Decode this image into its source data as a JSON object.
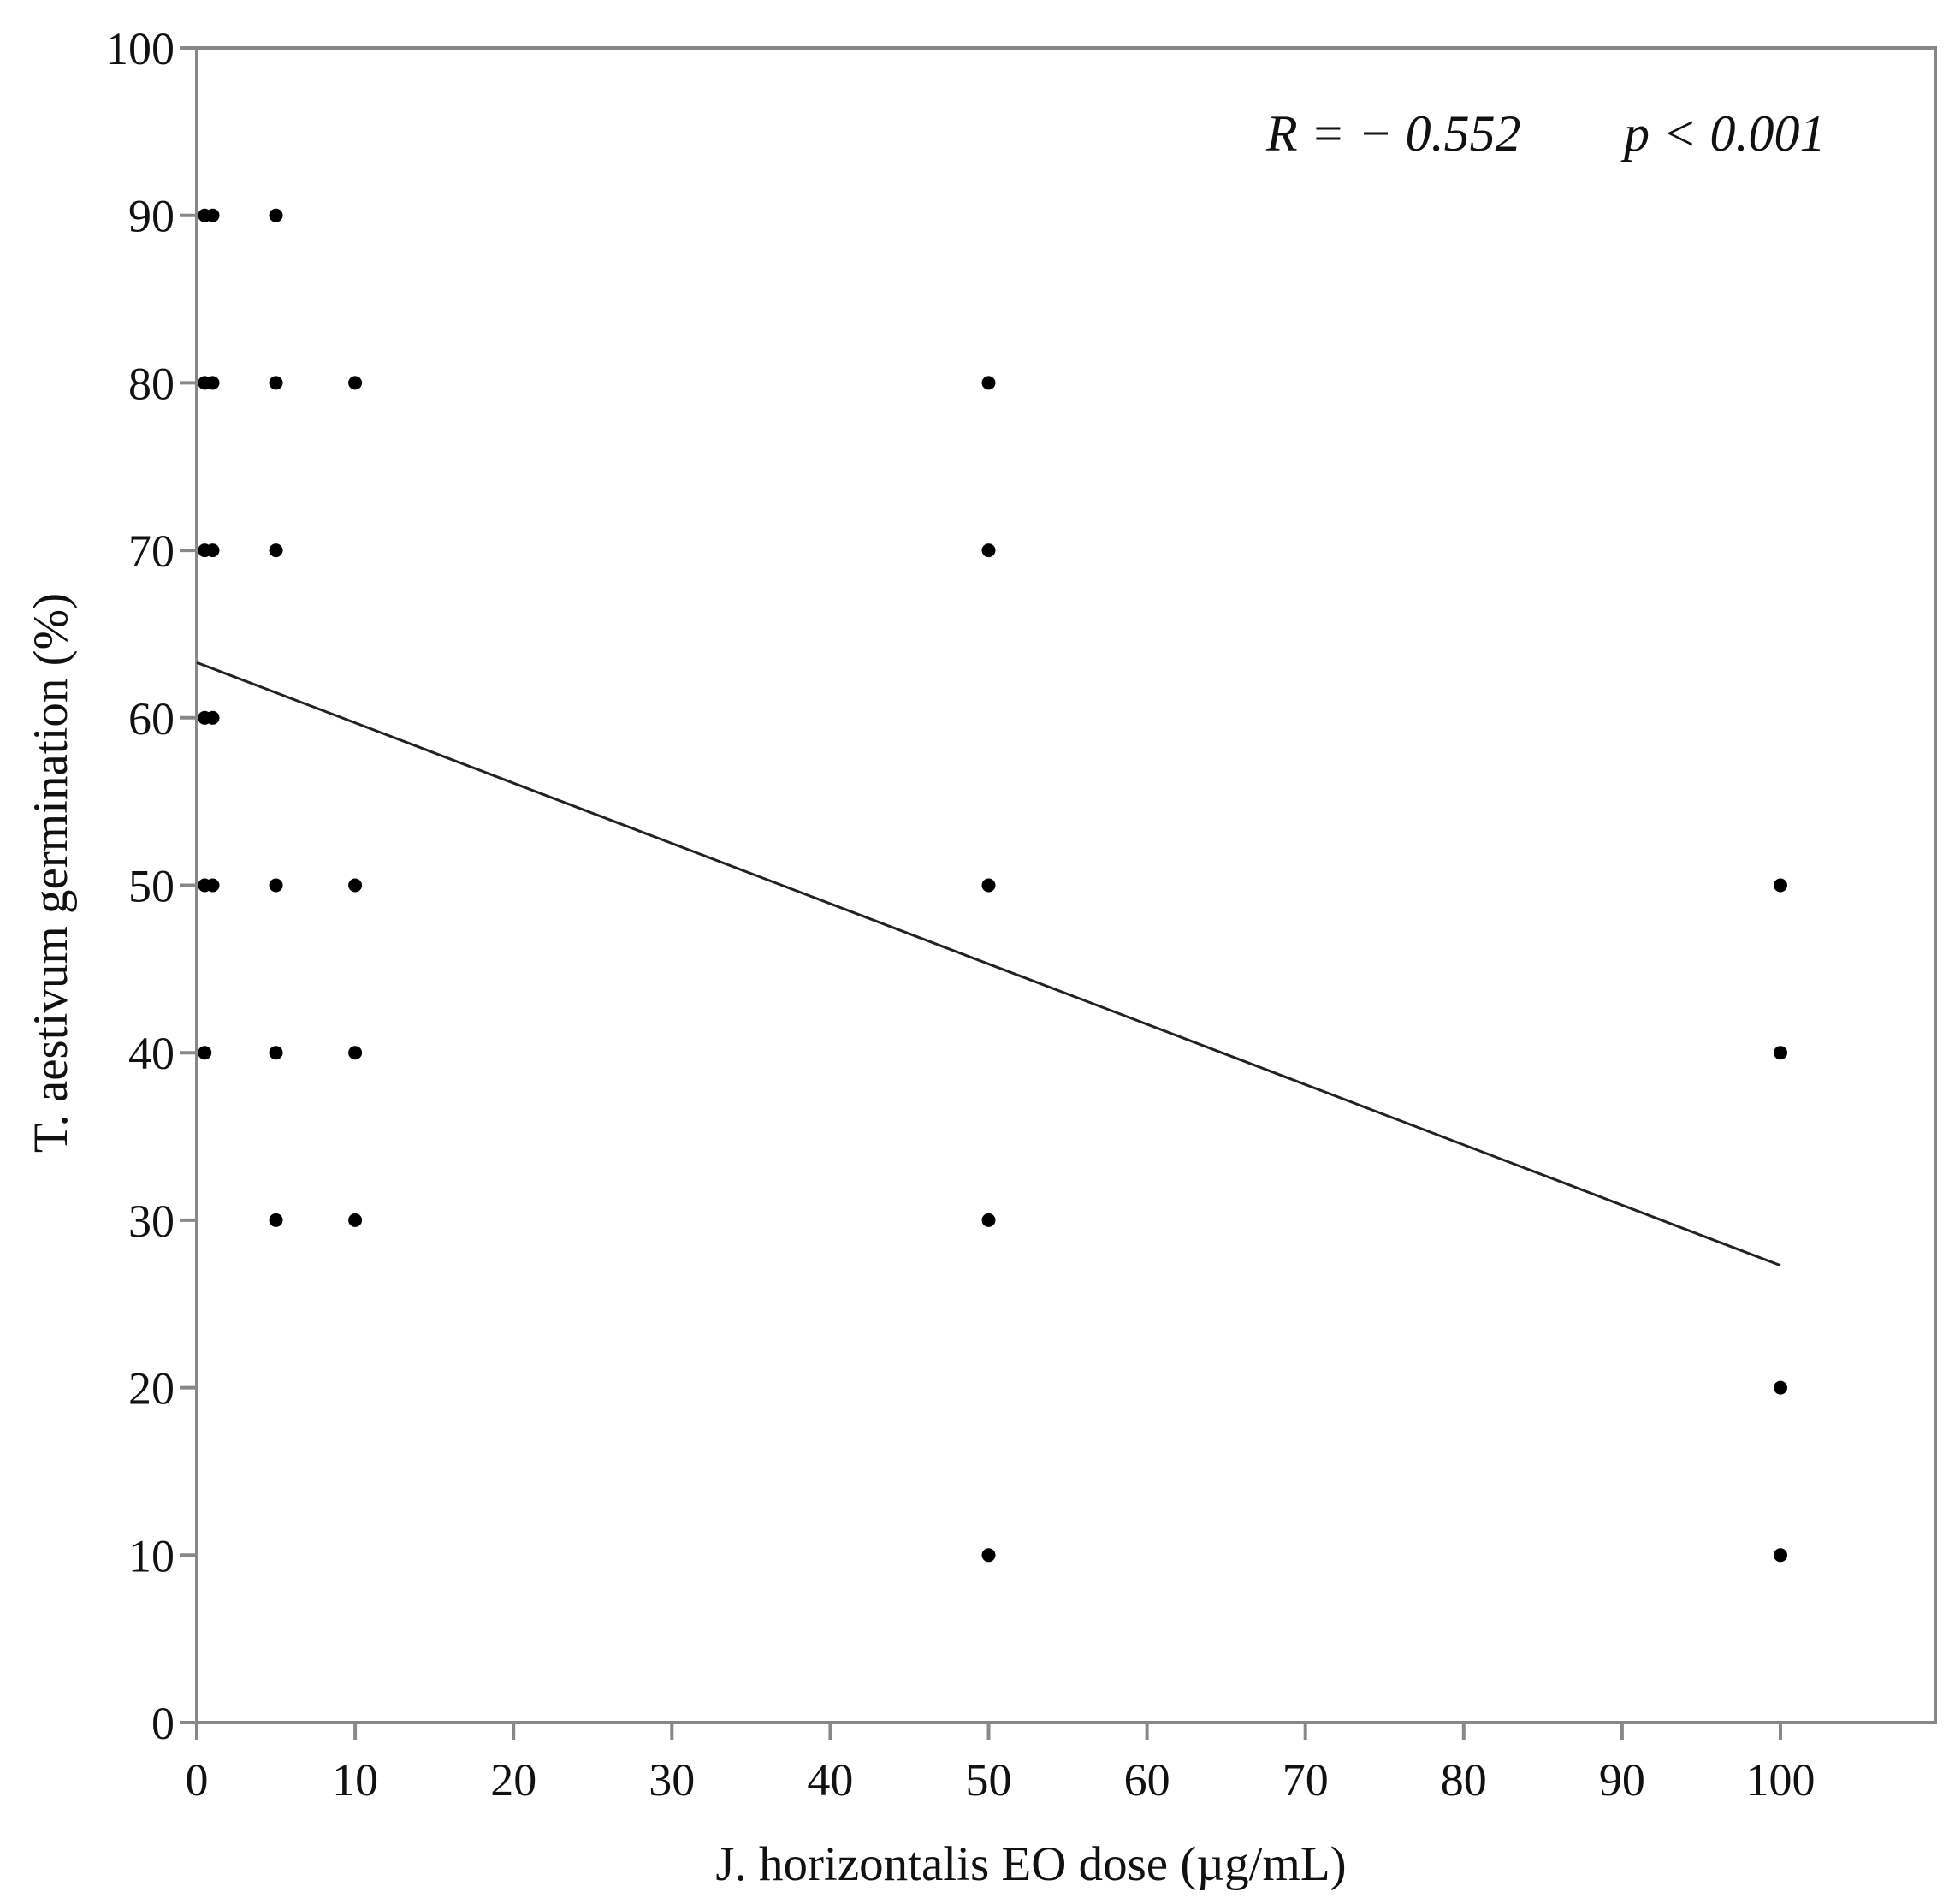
{
  "chart_data": {
    "type": "scatter",
    "xlabel": "J. horizontalis EO dose (µg/mL)",
    "ylabel": "T. aestivum germination (%)",
    "xlim": [
      0,
      110
    ],
    "ylim": [
      0,
      100
    ],
    "x_ticks": [
      0,
      10,
      20,
      30,
      40,
      50,
      60,
      70,
      80,
      90,
      100
    ],
    "y_ticks": [
      0,
      10,
      20,
      30,
      40,
      50,
      60,
      70,
      80,
      90,
      100
    ],
    "grid": false,
    "points": [
      {
        "x": 0.5,
        "y": 90
      },
      {
        "x": 0.5,
        "y": 80
      },
      {
        "x": 0.5,
        "y": 70
      },
      {
        "x": 0.5,
        "y": 60
      },
      {
        "x": 0.5,
        "y": 50
      },
      {
        "x": 0.5,
        "y": 40
      },
      {
        "x": 1,
        "y": 90
      },
      {
        "x": 1,
        "y": 80
      },
      {
        "x": 1,
        "y": 70
      },
      {
        "x": 1,
        "y": 60
      },
      {
        "x": 1,
        "y": 50
      },
      {
        "x": 5,
        "y": 90
      },
      {
        "x": 5,
        "y": 80
      },
      {
        "x": 5,
        "y": 70
      },
      {
        "x": 5,
        "y": 50
      },
      {
        "x": 5,
        "y": 40
      },
      {
        "x": 5,
        "y": 30
      },
      {
        "x": 10,
        "y": 80
      },
      {
        "x": 10,
        "y": 50
      },
      {
        "x": 10,
        "y": 40
      },
      {
        "x": 10,
        "y": 30
      },
      {
        "x": 50,
        "y": 80
      },
      {
        "x": 50,
        "y": 70
      },
      {
        "x": 50,
        "y": 50
      },
      {
        "x": 50,
        "y": 30
      },
      {
        "x": 50,
        "y": 10
      },
      {
        "x": 100,
        "y": 50
      },
      {
        "x": 100,
        "y": 40
      },
      {
        "x": 100,
        "y": 20
      },
      {
        "x": 100,
        "y": 10
      }
    ],
    "regression_line": {
      "x": [
        0,
        100
      ],
      "y": [
        63.3,
        27.3
      ]
    },
    "annotation": {
      "r_text": "R = − 0.552",
      "p_text": "p < 0.001"
    }
  },
  "colors": {
    "axis": "#888888",
    "points": "#000000",
    "line": "#222222",
    "text": "#111111"
  }
}
